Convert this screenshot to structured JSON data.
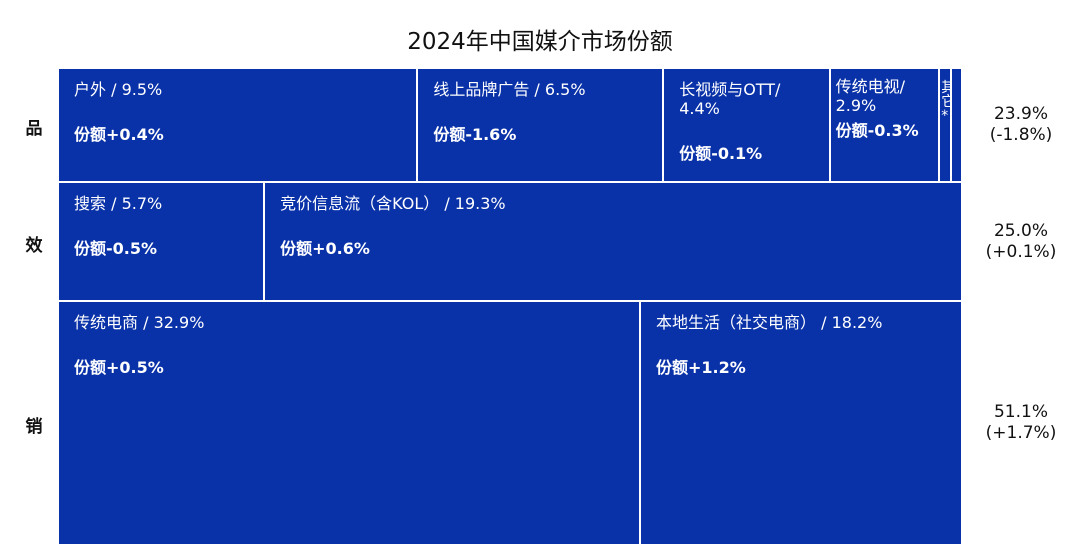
{
  "chart_data": {
    "type": "treemap",
    "title": "2024年中国媒介市场份额",
    "colors": {
      "cell": "#0a32a8",
      "border": "#ffffff",
      "text": "#ffffff"
    },
    "rows": [
      {
        "label": "品",
        "share_text": "23.9%",
        "change_text": "(-1.8%)",
        "share": 23.9,
        "cells": [
          {
            "name": "户外 / 9.5%",
            "change": "份额+0.4%",
            "value": 9.5
          },
          {
            "name": "线上品牌广告 / 6.5%",
            "change": "份额-1.6%",
            "value": 6.5
          },
          {
            "name": "长视频与OTT/ 4.4%",
            "change": "份额-0.1%",
            "value": 4.4
          },
          {
            "name": "传统电视/ 2.9%",
            "change": "份额-0.3%",
            "value": 2.9
          },
          {
            "name": "其它*",
            "change": "",
            "value": 0.3
          },
          {
            "name": "",
            "change": "",
            "value": 0.3
          }
        ]
      },
      {
        "label": "效",
        "share_text": "25.0%",
        "change_text": "(+0.1%)",
        "share": 25.0,
        "cells": [
          {
            "name": "搜索 / 5.7%",
            "change": "份额-0.5%",
            "value": 5.7
          },
          {
            "name": "竞价信息流（含KOL） / 19.3%",
            "change": "份额+0.6%",
            "value": 19.3
          }
        ]
      },
      {
        "label": "销",
        "share_text": "51.1%",
        "change_text": "(+1.7%)",
        "share": 51.1,
        "cells": [
          {
            "name": "传统电商 / 32.9%",
            "change": "份额+0.5%",
            "value": 32.9
          },
          {
            "name": "本地生活（社交电商） / 18.2%",
            "change": "份额+1.2%",
            "value": 18.2
          }
        ]
      }
    ]
  }
}
